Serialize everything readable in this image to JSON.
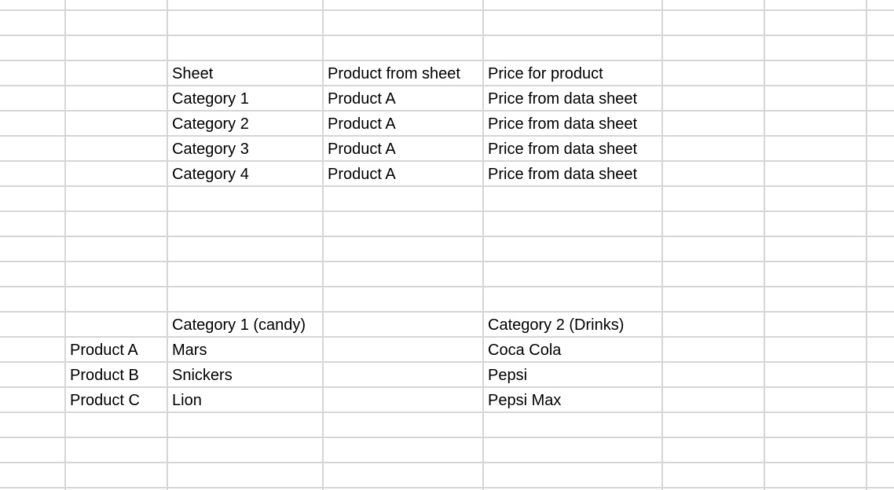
{
  "sheet": {
    "gridline_color": "#d6d6d6",
    "text_color": "#000000",
    "lookup_table": {
      "header": {
        "sheet": "Sheet",
        "product": "Product from sheet",
        "price": "Price for product"
      },
      "rows": [
        {
          "sheet": "Category 1",
          "product": "Product A",
          "price": "Price from data sheet"
        },
        {
          "sheet": "Category 2",
          "product": "Product A",
          "price": "Price from data sheet"
        },
        {
          "sheet": "Category 3",
          "product": "Product A",
          "price": "Price from data sheet"
        },
        {
          "sheet": "Category 4",
          "product": "Product A",
          "price": "Price from data sheet"
        }
      ]
    },
    "categories": {
      "candy_header": "Category 1 (candy)",
      "drinks_header": "Category 2 (Drinks)",
      "rows": [
        {
          "product": "Product A",
          "candy": "Mars",
          "drinks": "Coca Cola"
        },
        {
          "product": "Product B",
          "candy": "Snickers",
          "drinks": "Pepsi"
        },
        {
          "product": "Product C",
          "candy": "Lion",
          "drinks": "Pepsi Max"
        }
      ]
    }
  }
}
